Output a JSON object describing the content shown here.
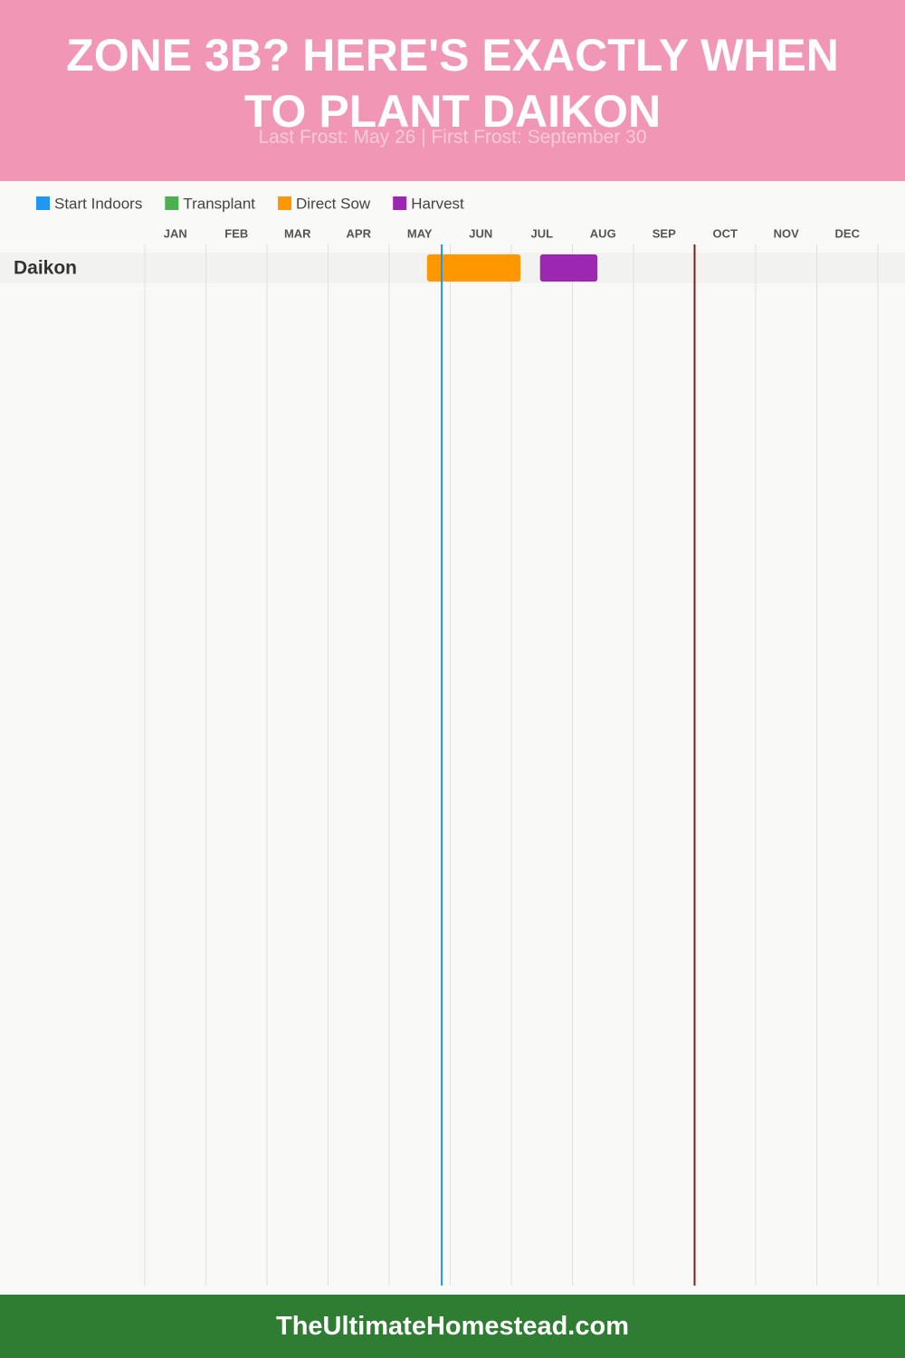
{
  "chart_data": {
    "type": "gantt",
    "title": "ZONE 3B? HERE'S EXACTLY WHEN TO PLANT DAIKON",
    "subtitle": "Last Frost: May 26 | First Frost: September 30",
    "categories": [
      "Daikon"
    ],
    "series": [
      {
        "name": "Start Indoors",
        "color": "#2196f3",
        "values": [
          null
        ]
      },
      {
        "name": "Transplant",
        "color": "#4caf50",
        "values": [
          null
        ]
      },
      {
        "name": "Direct Sow",
        "color": "#ff9800",
        "values": [
          [
            4.62,
            6.15
          ]
        ]
      },
      {
        "name": "Harvest",
        "color": "#9c27b0",
        "values": [
          [
            6.47,
            7.41
          ]
        ]
      }
    ],
    "xlim": [
      0,
      12
    ],
    "xticks": [
      {
        "value": 0.5,
        "label": "JAN"
      },
      {
        "value": 1.5,
        "label": "FEB"
      },
      {
        "value": 2.5,
        "label": "MAR"
      },
      {
        "value": 3.5,
        "label": "APR"
      },
      {
        "value": 4.5,
        "label": "MAY"
      },
      {
        "value": 5.5,
        "label": "JUN"
      },
      {
        "value": 6.5,
        "label": "JUL"
      },
      {
        "value": 7.5,
        "label": "AUG"
      },
      {
        "value": 8.5,
        "label": "SEP"
      },
      {
        "value": 9.5,
        "label": "OCT"
      },
      {
        "value": 10.5,
        "label": "NOV"
      },
      {
        "value": 11.5,
        "label": "DEC"
      }
    ],
    "reference_lines": [
      {
        "value": 4.86,
        "color": "#2196f3"
      },
      {
        "value": 9.0,
        "color": "#8b1a1a"
      }
    ]
  },
  "footer": "TheUltimateHomestead.com"
}
